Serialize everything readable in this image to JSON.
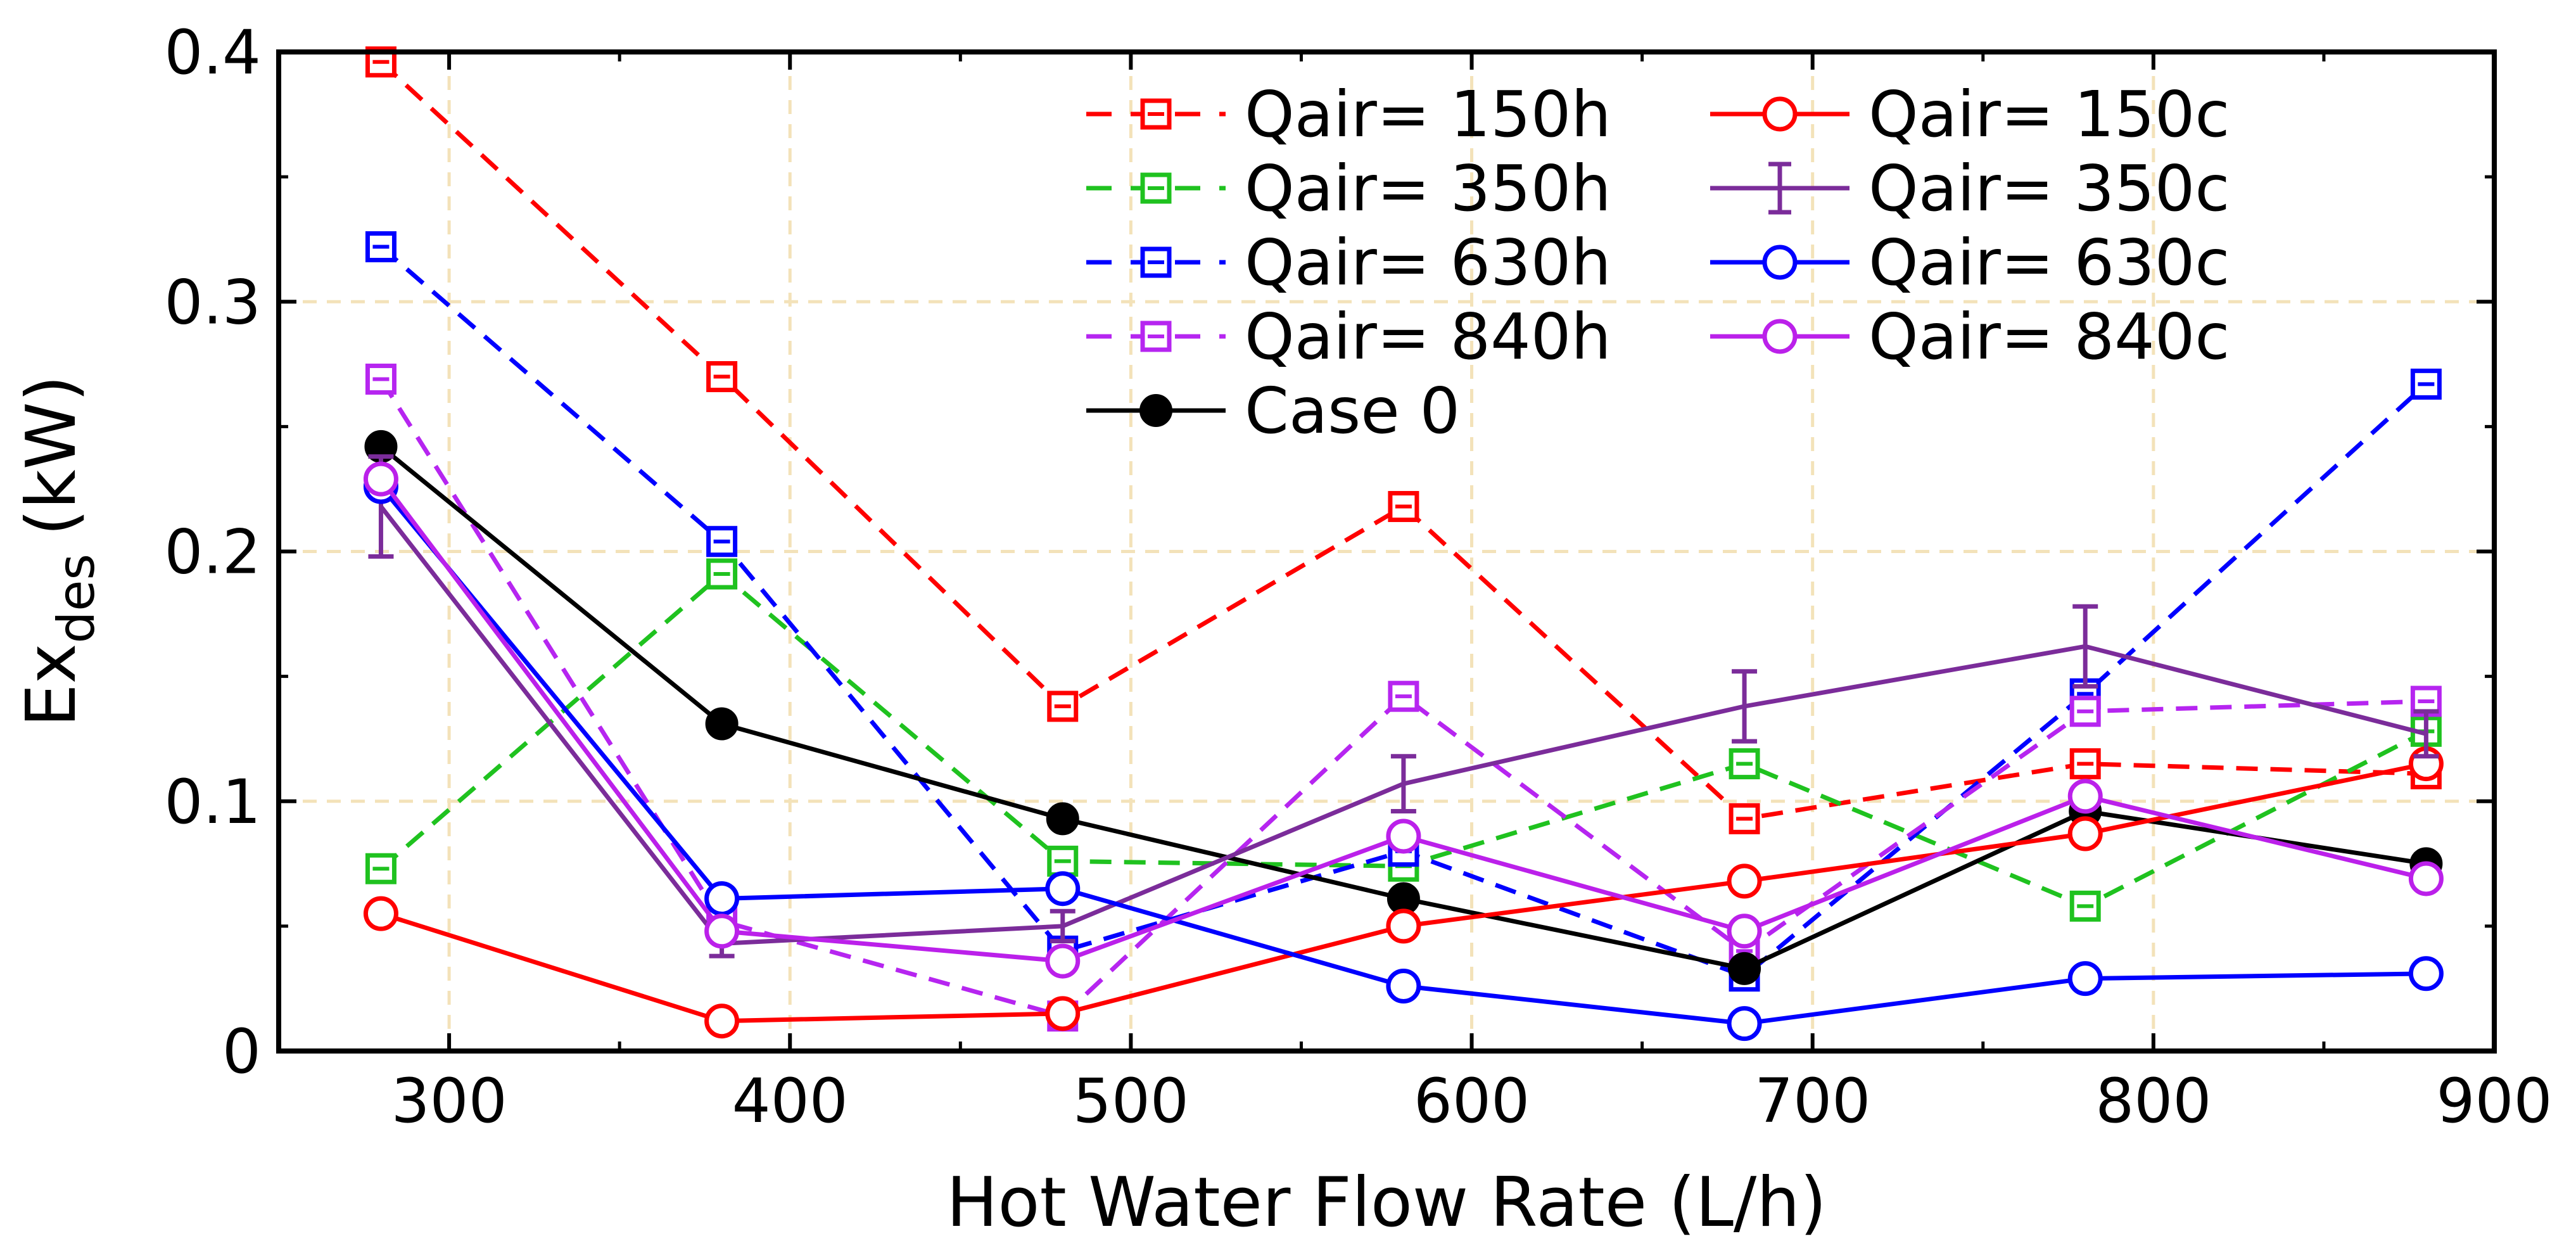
{
  "chart_data": {
    "type": "line",
    "title": "",
    "xlabel": "Hot Water Flow Rate (L/h)",
    "ylabel_main": "Ex",
    "ylabel_sub": "des",
    "ylabel_unit": "(kW)",
    "xlim": [
      250,
      900
    ],
    "ylim": [
      0,
      0.4
    ],
    "grid": true,
    "legend_position": "top-right",
    "x": [
      280,
      380,
      480,
      580,
      680,
      780,
      880
    ],
    "x_ticks": [
      300,
      400,
      500,
      600,
      700,
      800,
      900
    ],
    "y_ticks": [
      0,
      0.1,
      0.2,
      0.3,
      0.4
    ],
    "x_tick_labels": [
      "300",
      "400",
      "500",
      "600",
      "700",
      "800",
      "900"
    ],
    "y_tick_labels": [
      "0",
      "0.1",
      "0.2",
      "0.3",
      "0.4"
    ],
    "series": [
      {
        "name": "Qair= 150h",
        "color": "#ff0000",
        "style": "dashed",
        "marker": "square",
        "values": [
          0.396,
          0.27,
          0.138,
          0.218,
          0.093,
          0.115,
          0.111
        ]
      },
      {
        "name": "Qair= 350h",
        "color": "#1fc21f",
        "style": "dashed",
        "marker": "square",
        "values": [
          0.073,
          0.191,
          0.076,
          0.074,
          0.115,
          0.058,
          0.128
        ]
      },
      {
        "name": "Qair= 630h",
        "color": "#0000ff",
        "style": "dashed",
        "marker": "square",
        "values": [
          0.322,
          0.204,
          0.04,
          0.08,
          0.03,
          0.143,
          0.267
        ]
      },
      {
        "name": "Qair= 840h",
        "color": "#b625f0",
        "style": "dashed",
        "marker": "square",
        "values": [
          0.269,
          0.052,
          0.014,
          0.142,
          0.04,
          0.136,
          0.14
        ]
      },
      {
        "name": "Case 0",
        "color": "#000000",
        "style": "solid",
        "marker": "filled-circle",
        "values": [
          0.242,
          0.131,
          0.093,
          0.061,
          0.033,
          0.096,
          0.075
        ]
      },
      {
        "name": "Qair= 150c",
        "color": "#ff0000",
        "style": "solid",
        "marker": "circle",
        "values": [
          0.055,
          0.012,
          0.015,
          0.05,
          0.068,
          0.087,
          0.115
        ]
      },
      {
        "name": "Qair= 350c",
        "color": "#7b2c9a",
        "style": "solid",
        "marker": "errorbar",
        "values": [
          0.218,
          0.043,
          0.05,
          0.107,
          0.138,
          0.162,
          0.127
        ],
        "errors": [
          0.02,
          0.005,
          0.006,
          0.011,
          0.014,
          0.016,
          0.009
        ]
      },
      {
        "name": "Qair= 630c",
        "color": "#0000ff",
        "style": "solid",
        "marker": "circle",
        "values": [
          0.226,
          0.061,
          0.065,
          0.026,
          0.011,
          0.029,
          0.031
        ]
      },
      {
        "name": "Qair= 840c",
        "color": "#bb20ea",
        "style": "solid",
        "marker": "circle",
        "values": [
          0.229,
          0.048,
          0.036,
          0.086,
          0.048,
          0.102,
          0.069
        ]
      }
    ]
  }
}
